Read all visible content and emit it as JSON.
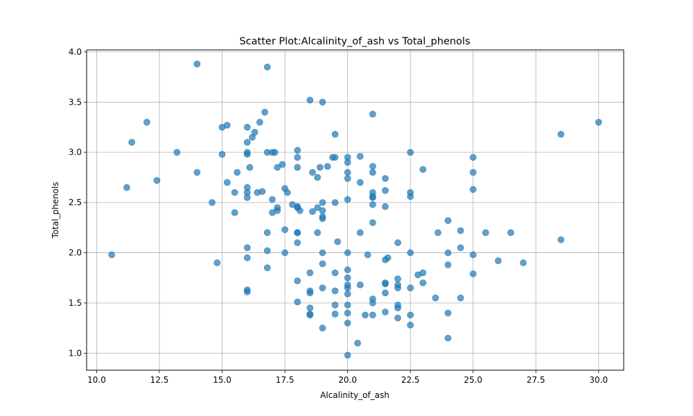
{
  "chart_data": {
    "type": "scatter",
    "title": "Scatter Plot:Alcalinity_of_ash vs Total_phenols",
    "xlabel": "Alcalinity_of_ash",
    "ylabel": "Total_phenols",
    "xlim": [
      9.6,
      31.0
    ],
    "ylim": [
      0.83,
      4.02
    ],
    "xticks": [
      10.0,
      12.5,
      15.0,
      17.5,
      20.0,
      22.5,
      25.0,
      27.5,
      30.0
    ],
    "xtick_labels": [
      "10.0",
      "12.5",
      "15.0",
      "17.5",
      "20.0",
      "22.5",
      "25.0",
      "27.5",
      "30.0"
    ],
    "yticks": [
      1.0,
      1.5,
      2.0,
      2.5,
      3.0,
      3.5,
      4.0
    ],
    "ytick_labels": [
      "1.0",
      "1.5",
      "2.0",
      "2.5",
      "3.0",
      "3.5",
      "4.0"
    ],
    "grid": true,
    "marker_color": "#1f77b4",
    "marker_alpha": 0.7,
    "points": [
      [
        10.6,
        1.98
      ],
      [
        11.2,
        2.65
      ],
      [
        11.4,
        3.1
      ],
      [
        12.0,
        3.3
      ],
      [
        12.4,
        2.72
      ],
      [
        13.2,
        3.0
      ],
      [
        14.0,
        2.8
      ],
      [
        14.0,
        3.88
      ],
      [
        14.6,
        2.5
      ],
      [
        14.8,
        1.9
      ],
      [
        15.0,
        3.25
      ],
      [
        15.0,
        2.98
      ],
      [
        15.2,
        3.27
      ],
      [
        15.2,
        2.7
      ],
      [
        15.5,
        2.6
      ],
      [
        15.5,
        2.4
      ],
      [
        15.6,
        2.8
      ],
      [
        16.0,
        3.25
      ],
      [
        16.0,
        3.1
      ],
      [
        16.0,
        3.0
      ],
      [
        16.0,
        2.98
      ],
      [
        16.0,
        2.65
      ],
      [
        16.0,
        2.6
      ],
      [
        16.0,
        2.55
      ],
      [
        16.0,
        2.05
      ],
      [
        16.0,
        1.95
      ],
      [
        16.0,
        1.63
      ],
      [
        16.0,
        1.61
      ],
      [
        16.1,
        2.85
      ],
      [
        16.2,
        3.15
      ],
      [
        16.3,
        3.2
      ],
      [
        16.4,
        2.6
      ],
      [
        16.5,
        3.3
      ],
      [
        16.6,
        2.61
      ],
      [
        16.7,
        3.4
      ],
      [
        16.8,
        3.85
      ],
      [
        16.8,
        3.0
      ],
      [
        16.8,
        2.2
      ],
      [
        16.8,
        2.02
      ],
      [
        16.8,
        1.85
      ],
      [
        17.0,
        3.0
      ],
      [
        17.0,
        2.53
      ],
      [
        17.0,
        2.4
      ],
      [
        17.1,
        3.0
      ],
      [
        17.2,
        2.85
      ],
      [
        17.2,
        2.45
      ],
      [
        17.2,
        2.42
      ],
      [
        17.4,
        2.88
      ],
      [
        17.5,
        2.64
      ],
      [
        17.5,
        2.23
      ],
      [
        17.5,
        2.0
      ],
      [
        17.6,
        2.6
      ],
      [
        17.8,
        2.48
      ],
      [
        18.0,
        3.02
      ],
      [
        18.0,
        2.95
      ],
      [
        18.0,
        2.85
      ],
      [
        18.0,
        2.46
      ],
      [
        18.0,
        2.45
      ],
      [
        18.0,
        2.2
      ],
      [
        18.0,
        2.2
      ],
      [
        18.0,
        2.1
      ],
      [
        18.0,
        1.72
      ],
      [
        18.0,
        1.51
      ],
      [
        18.1,
        2.42
      ],
      [
        18.5,
        3.52
      ],
      [
        18.5,
        1.8
      ],
      [
        18.5,
        1.62
      ],
      [
        18.5,
        1.6
      ],
      [
        18.5,
        1.45
      ],
      [
        18.5,
        1.39
      ],
      [
        18.5,
        1.38
      ],
      [
        18.6,
        2.8
      ],
      [
        18.6,
        2.41
      ],
      [
        18.8,
        2.75
      ],
      [
        18.8,
        2.45
      ],
      [
        18.8,
        2.2
      ],
      [
        18.9,
        2.85
      ],
      [
        19.0,
        3.5
      ],
      [
        19.0,
        2.5
      ],
      [
        19.0,
        2.42
      ],
      [
        19.0,
        2.36
      ],
      [
        19.0,
        2.34
      ],
      [
        19.0,
        2.0
      ],
      [
        19.0,
        1.89
      ],
      [
        19.0,
        1.65
      ],
      [
        19.0,
        1.25
      ],
      [
        19.2,
        2.86
      ],
      [
        19.4,
        2.95
      ],
      [
        19.5,
        3.18
      ],
      [
        19.5,
        2.95
      ],
      [
        19.5,
        2.5
      ],
      [
        19.5,
        1.8
      ],
      [
        19.5,
        1.62
      ],
      [
        19.5,
        1.48
      ],
      [
        19.5,
        1.39
      ],
      [
        19.6,
        2.11
      ],
      [
        20.0,
        2.95
      ],
      [
        20.0,
        2.9
      ],
      [
        20.0,
        2.8
      ],
      [
        20.0,
        2.74
      ],
      [
        20.0,
        2.53
      ],
      [
        20.0,
        2.0
      ],
      [
        20.0,
        1.83
      ],
      [
        20.0,
        1.75
      ],
      [
        20.0,
        1.68
      ],
      [
        20.0,
        1.65
      ],
      [
        20.0,
        1.59
      ],
      [
        20.0,
        1.48
      ],
      [
        20.0,
        1.4
      ],
      [
        20.0,
        1.3
      ],
      [
        20.0,
        0.98
      ],
      [
        20.4,
        1.1
      ],
      [
        20.5,
        2.96
      ],
      [
        20.5,
        2.7
      ],
      [
        20.5,
        2.2
      ],
      [
        20.5,
        1.68
      ],
      [
        20.7,
        1.38
      ],
      [
        20.8,
        1.98
      ],
      [
        21.0,
        3.38
      ],
      [
        21.0,
        2.86
      ],
      [
        21.0,
        2.8
      ],
      [
        21.0,
        2.6
      ],
      [
        21.0,
        2.56
      ],
      [
        21.0,
        2.55
      ],
      [
        21.0,
        2.48
      ],
      [
        21.0,
        2.3
      ],
      [
        21.0,
        1.54
      ],
      [
        21.0,
        1.5
      ],
      [
        21.0,
        1.38
      ],
      [
        21.5,
        2.74
      ],
      [
        21.5,
        2.62
      ],
      [
        21.5,
        2.46
      ],
      [
        21.5,
        1.93
      ],
      [
        21.5,
        1.7
      ],
      [
        21.5,
        1.69
      ],
      [
        21.5,
        1.6
      ],
      [
        21.5,
        1.41
      ],
      [
        21.6,
        1.95
      ],
      [
        22.0,
        2.1
      ],
      [
        22.0,
        1.74
      ],
      [
        22.0,
        1.68
      ],
      [
        22.0,
        1.65
      ],
      [
        22.0,
        1.48
      ],
      [
        22.0,
        1.45
      ],
      [
        22.0,
        1.35
      ],
      [
        22.5,
        3.0
      ],
      [
        22.5,
        2.6
      ],
      [
        22.5,
        2.56
      ],
      [
        22.5,
        2.0
      ],
      [
        22.5,
        1.65
      ],
      [
        22.5,
        1.38
      ],
      [
        22.5,
        1.28
      ],
      [
        22.8,
        1.78
      ],
      [
        23.0,
        2.83
      ],
      [
        23.0,
        1.8
      ],
      [
        23.0,
        1.7
      ],
      [
        23.5,
        1.55
      ],
      [
        23.6,
        2.2
      ],
      [
        24.0,
        2.32
      ],
      [
        24.0,
        2.0
      ],
      [
        24.0,
        1.88
      ],
      [
        24.0,
        1.4
      ],
      [
        24.0,
        1.15
      ],
      [
        24.5,
        2.22
      ],
      [
        24.5,
        2.05
      ],
      [
        24.5,
        1.55
      ],
      [
        25.0,
        2.95
      ],
      [
        25.0,
        2.8
      ],
      [
        25.0,
        2.63
      ],
      [
        25.0,
        1.98
      ],
      [
        25.0,
        1.79
      ],
      [
        25.5,
        2.2
      ],
      [
        26.0,
        1.92
      ],
      [
        26.5,
        2.2
      ],
      [
        27.0,
        1.9
      ],
      [
        28.5,
        3.18
      ],
      [
        28.5,
        2.13
      ],
      [
        30.0,
        3.3
      ]
    ]
  }
}
